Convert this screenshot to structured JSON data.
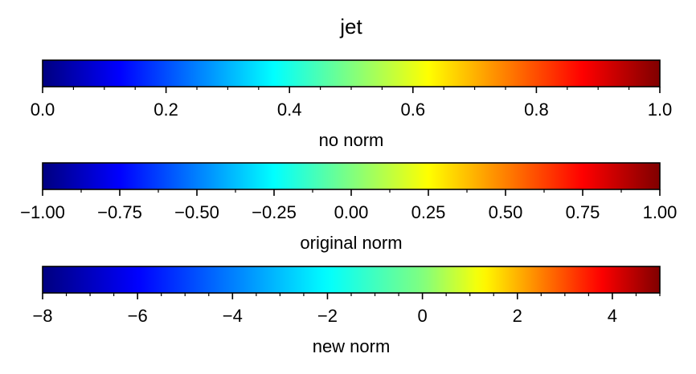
{
  "chart_data": {
    "type": "colorbar",
    "title": "jet",
    "colormap": "jet",
    "bars": [
      {
        "label": "no norm",
        "range": [
          0.0,
          1.0
        ],
        "major_ticks": [
          0.0,
          0.2,
          0.4,
          0.6,
          0.8,
          1.0
        ],
        "tick_labels": [
          "0.0",
          "0.2",
          "0.4",
          "0.6",
          "0.8",
          "1.0"
        ],
        "minor_step": 0.05,
        "color_mapping": "linear"
      },
      {
        "label": "original norm",
        "range": [
          -1.0,
          1.0
        ],
        "major_ticks": [
          -1.0,
          -0.75,
          -0.5,
          -0.25,
          0.0,
          0.25,
          0.5,
          0.75,
          1.0
        ],
        "tick_labels": [
          "−1.00",
          "−0.75",
          "−0.50",
          "−0.25",
          "0.00",
          "0.25",
          "0.50",
          "0.75",
          "1.00"
        ],
        "minor_step": 0.125,
        "color_mapping": "linear"
      },
      {
        "label": "new norm",
        "range": [
          -8,
          5
        ],
        "major_ticks": [
          -8,
          -6,
          -4,
          -2,
          0,
          2,
          4
        ],
        "tick_labels": [
          "−8",
          "−6",
          "−4",
          "−2",
          "0",
          "2",
          "4"
        ],
        "minor_step": 0.5,
        "color_mapping": "piecewise",
        "color_nodes": [
          [
            -8,
            0.0
          ],
          [
            0,
            0.5
          ],
          [
            5,
            1.0
          ]
        ]
      }
    ]
  }
}
